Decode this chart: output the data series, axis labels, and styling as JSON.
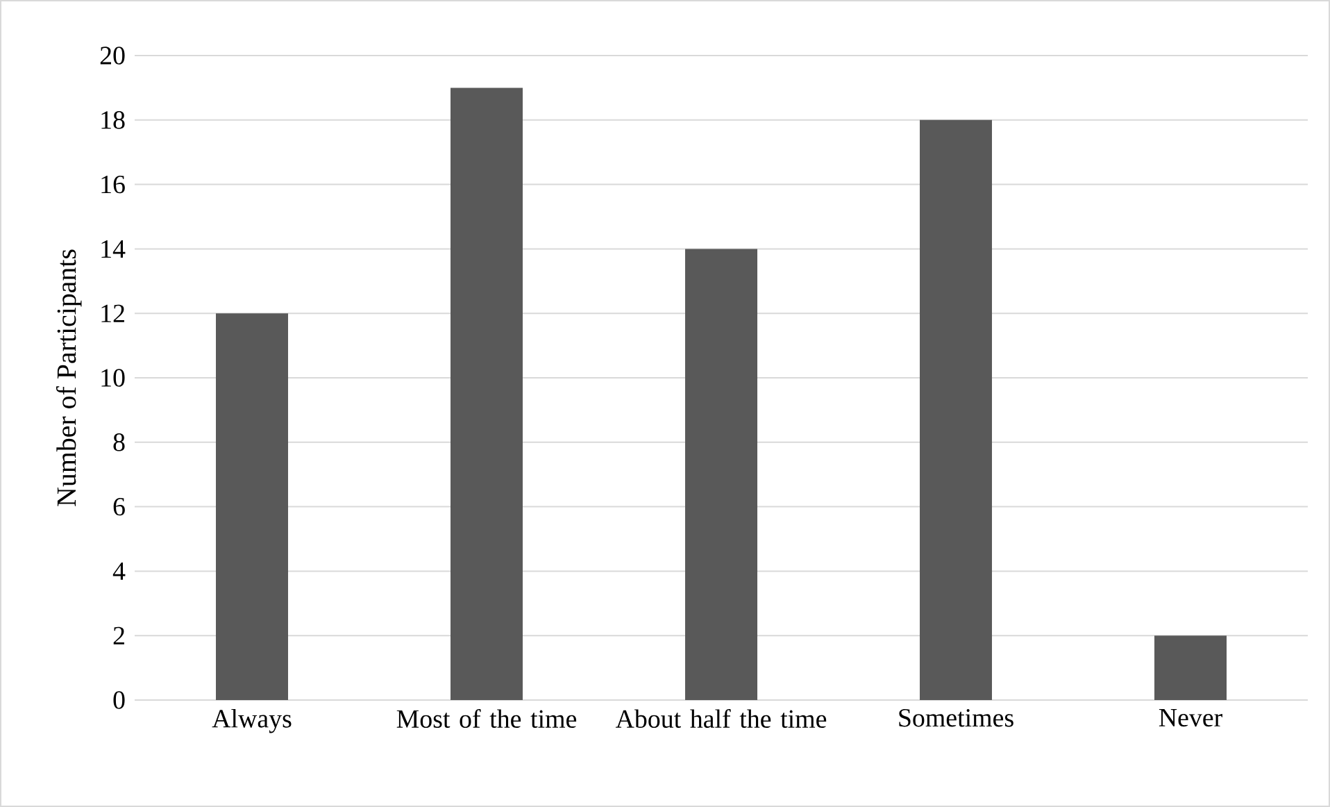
{
  "chart_data": {
    "type": "bar",
    "ylabel": "Number of Participants",
    "categories": [
      "Always",
      "Most of the time",
      "About half the time",
      "Sometimes",
      "Never"
    ],
    "values": [
      12,
      19,
      14,
      18,
      2
    ],
    "color": "#595959",
    "ylim": [
      0,
      20
    ],
    "yticks": [
      0,
      2,
      4,
      6,
      8,
      10,
      12,
      14,
      16,
      18,
      20
    ],
    "grid": "y"
  }
}
